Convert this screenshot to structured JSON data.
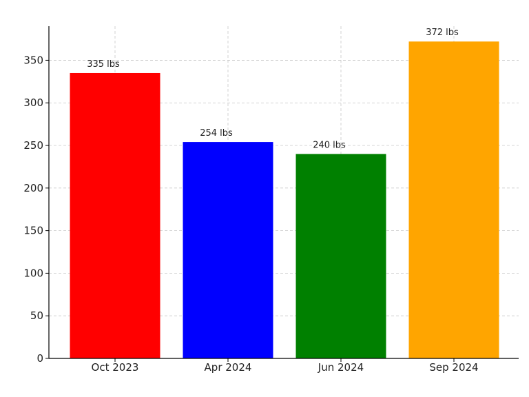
{
  "chart_data": {
    "type": "bar",
    "title": "",
    "xlabel": "",
    "ylabel": "",
    "categories": [
      "Oct 2023",
      "Apr 2024",
      "Jun 2024",
      "Sep 2024"
    ],
    "values": [
      335,
      254,
      240,
      372
    ],
    "data_labels": [
      "335 lbs",
      "254 lbs",
      "240 lbs",
      "372 lbs"
    ],
    "colors": [
      "#ff0000",
      "#0000ff",
      "#008000",
      "#ffa500"
    ],
    "unit": "lbs",
    "ylim": [
      0,
      390
    ],
    "yticks": [
      0,
      50,
      100,
      150,
      200,
      250,
      300,
      350
    ],
    "grid": true,
    "legend": false
  }
}
